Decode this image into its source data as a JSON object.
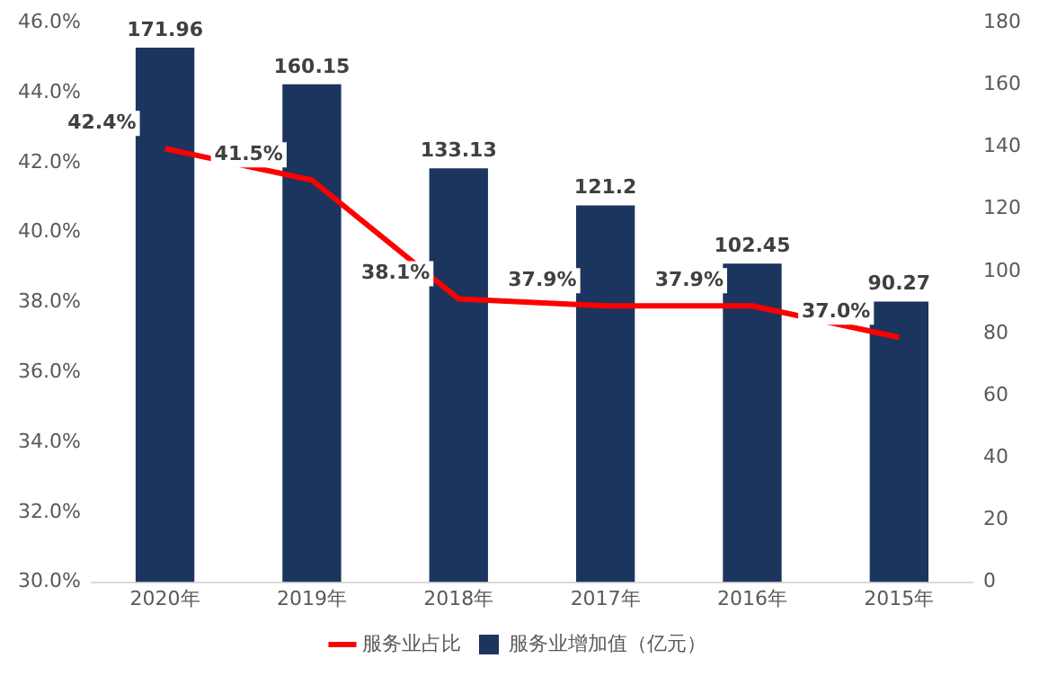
{
  "chart_data": {
    "type": "bar",
    "categories": [
      "2020年",
      "2019年",
      "2018年",
      "2017年",
      "2016年",
      "2015年"
    ],
    "series": [
      {
        "name": "服务业占比",
        "type": "line",
        "axis": "y",
        "color": "#ff0000",
        "values": [
          42.4,
          41.5,
          38.1,
          37.9,
          37.9,
          37.0
        ],
        "value_labels": [
          "42.4%",
          "41.5%",
          "38.1%",
          "37.9%",
          "37.9%",
          "37.0%"
        ]
      },
      {
        "name": "服务业增加值（亿元）",
        "axis": "y2",
        "color": "#1c355e",
        "values": [
          171.96,
          160.15,
          133.13,
          121.2,
          102.45,
          90.27
        ],
        "value_labels": [
          "171.96",
          "160.15",
          "133.13",
          "121.2",
          "102.45",
          "90.27"
        ]
      }
    ],
    "ylim": [
      30,
      46
    ],
    "yticks": [
      {
        "value": 30,
        "label": "30.0%"
      },
      {
        "value": 32,
        "label": "32.0%"
      },
      {
        "value": 34,
        "label": "34.0%"
      },
      {
        "value": 36,
        "label": "36.0%"
      },
      {
        "value": 38,
        "label": "38.0%"
      },
      {
        "value": 40,
        "label": "40.0%"
      },
      {
        "value": 42,
        "label": "42.0%"
      },
      {
        "value": 44,
        "label": "44.0%"
      },
      {
        "value": 46,
        "label": "46.0%"
      }
    ],
    "y2lim": [
      0,
      180
    ],
    "y2ticks": [
      0,
      20,
      40,
      60,
      80,
      100,
      120,
      140,
      160,
      180
    ],
    "legend": "bottom",
    "grid": false,
    "marker": "none",
    "line_style": "solid"
  }
}
